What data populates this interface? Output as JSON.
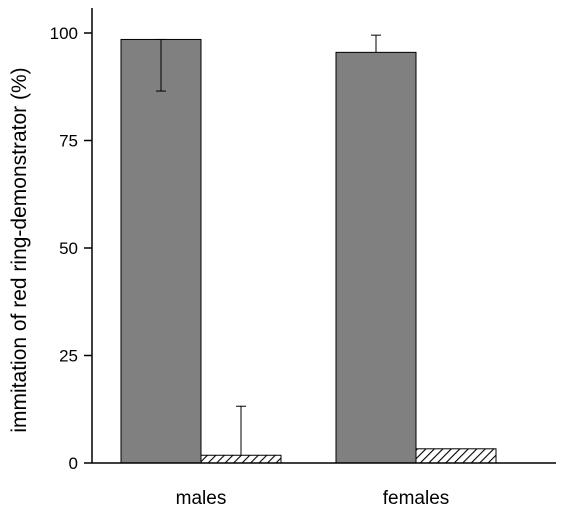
{
  "chart_data": {
    "type": "bar",
    "title": "",
    "xlabel": "",
    "ylabel": "immitation of red ring-demonstrator  (%)",
    "ylim": [
      0,
      105
    ],
    "yticks": [
      0,
      25,
      50,
      75,
      100
    ],
    "yticklabels": [
      "0",
      "25",
      "50",
      "75",
      "100"
    ],
    "categories": [
      "males",
      "females"
    ],
    "grid": false,
    "legend": "none",
    "series": [
      {
        "values": [
          98.5,
          95.5
        ],
        "error_upper": [
          98.5,
          99.5
        ],
        "error_lower": [
          86.5,
          95.5
        ],
        "fill": "solid",
        "color": "#808080"
      },
      {
        "values": [
          1.8,
          3.3
        ],
        "error_upper": [
          13.2,
          3.3
        ],
        "error_lower": [
          1.8,
          3.3
        ],
        "fill": "hatched",
        "color": "#ffffff"
      }
    ]
  }
}
